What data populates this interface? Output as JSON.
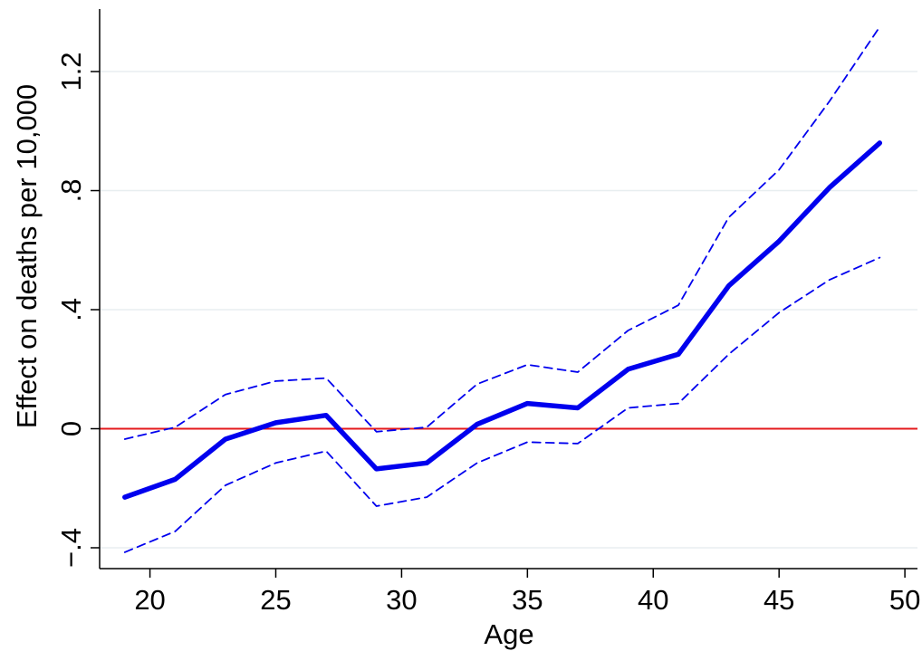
{
  "chart_data": {
    "type": "line",
    "xlabel": "Age",
    "ylabel": "Effect on deaths per 10,000",
    "xlim": [
      18,
      50.5
    ],
    "ylim": [
      -0.47,
      1.41
    ],
    "xticks": [
      20,
      25,
      30,
      35,
      40,
      45,
      50
    ],
    "yticks": [
      -0.4,
      0,
      0.4,
      0.8,
      1.2
    ],
    "xtick_labels": [
      "20",
      "25",
      "30",
      "35",
      "40",
      "45",
      "50"
    ],
    "ytick_labels": [
      "−.4",
      "0",
      ".4",
      ".8",
      "1.2"
    ],
    "grid": "horizontal",
    "reference_line": {
      "y": 0,
      "color": "#e41a1c"
    },
    "x": [
      19,
      21,
      23,
      25,
      27,
      29,
      31,
      33,
      35,
      37,
      39,
      41,
      43,
      45,
      47,
      49
    ],
    "series": [
      {
        "role": "estimate",
        "style": "solid",
        "color": "#0000ee",
        "values": [
          -0.23,
          -0.17,
          -0.035,
          0.02,
          0.045,
          -0.135,
          -0.115,
          0.015,
          0.085,
          0.07,
          0.2,
          0.25,
          0.48,
          0.63,
          0.81,
          0.96
        ]
      },
      {
        "role": "upper-ci",
        "style": "dashed",
        "color": "#0000ee",
        "values": [
          -0.035,
          0.005,
          0.115,
          0.16,
          0.17,
          -0.01,
          0.005,
          0.15,
          0.215,
          0.19,
          0.33,
          0.415,
          0.71,
          0.87,
          1.1,
          1.35
        ]
      },
      {
        "role": "lower-ci",
        "style": "dashed",
        "color": "#0000ee",
        "values": [
          -0.415,
          -0.345,
          -0.19,
          -0.115,
          -0.075,
          -0.26,
          -0.23,
          -0.115,
          -0.045,
          -0.05,
          0.07,
          0.085,
          0.25,
          0.39,
          0.5,
          0.575
        ]
      }
    ]
  }
}
